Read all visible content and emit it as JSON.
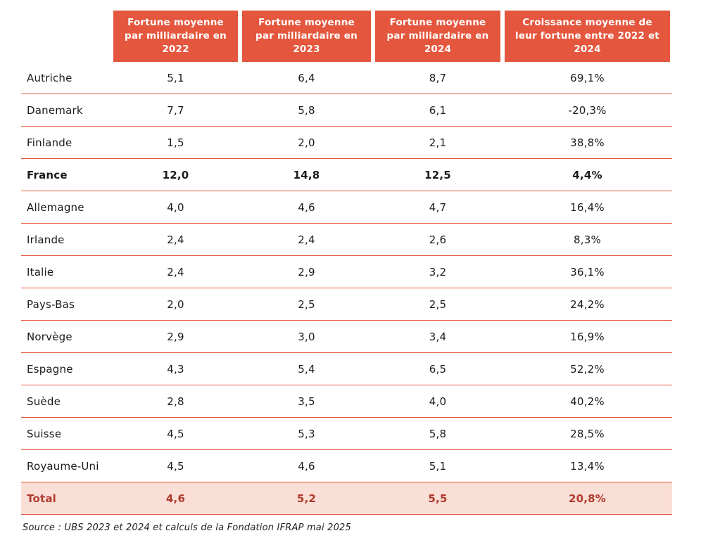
{
  "table": {
    "columns": [
      "Fortune moyenne par milliardaire en 2022",
      "Fortune moyenne par milliardaire en 2023",
      "Fortune moyenne par milliardaire en 2024",
      "Croissance moyenne de leur fortune entre 2022 et 2024"
    ],
    "rows": [
      {
        "country": "Autriche",
        "v2022": "5,1",
        "v2023": "6,4",
        "v2024": "8,7",
        "growth": "69,1%"
      },
      {
        "country": "Danemark",
        "v2022": "7,7",
        "v2023": "5,8",
        "v2024": "6,1",
        "growth": "-20,3%"
      },
      {
        "country": "Finlande",
        "v2022": "1,5",
        "v2023": "2,0",
        "v2024": "2,1",
        "growth": "38,8%"
      },
      {
        "country": "France",
        "v2022": "12,0",
        "v2023": "14,8",
        "v2024": "12,5",
        "growth": "4,4%"
      },
      {
        "country": "Allemagne",
        "v2022": "4,0",
        "v2023": "4,6",
        "v2024": "4,7",
        "growth": "16,4%"
      },
      {
        "country": "Irlande",
        "v2022": "2,4",
        "v2023": "2,4",
        "v2024": "2,6",
        "growth": "8,3%"
      },
      {
        "country": "Italie",
        "v2022": "2,4",
        "v2023": "2,9",
        "v2024": "3,2",
        "growth": "36,1%"
      },
      {
        "country": "Pays-Bas",
        "v2022": "2,0",
        "v2023": "2,5",
        "v2024": "2,5",
        "growth": "24,2%"
      },
      {
        "country": "Norvège",
        "v2022": "2,9",
        "v2023": "3,0",
        "v2024": "3,4",
        "growth": "16,9%"
      },
      {
        "country": "Espagne",
        "v2022": "4,3",
        "v2023": "5,4",
        "v2024": "6,5",
        "growth": "52,2%"
      },
      {
        "country": "Suède",
        "v2022": "2,8",
        "v2023": "3,5",
        "v2024": "4,0",
        "growth": "40,2%"
      },
      {
        "country": "Suisse",
        "v2022": "4,5",
        "v2023": "5,3",
        "v2024": "5,8",
        "growth": "28,5%"
      },
      {
        "country": "Royaume-Uni",
        "v2022": "4,5",
        "v2023": "4,6",
        "v2024": "5,1",
        "growth": "13,4%"
      }
    ],
    "total": {
      "label": "Total",
      "v2022": "4,6",
      "v2023": "5,2",
      "v2024": "5,5",
      "growth": "20,8%"
    }
  },
  "source": "Source : UBS 2023 et 2024 et calculs de la Fondation IFRAP mai 2025",
  "colors": {
    "header_bg": "#E4573E",
    "separator": "#E4573E",
    "total_bg": "#F9DFD6",
    "total_text": "#B03A2E",
    "body_text": "#1b1b1b"
  },
  "chart_data": {
    "type": "table",
    "title": "Fortune moyenne par milliardaire 2022-2024 et croissance",
    "categories": [
      "Autriche",
      "Danemark",
      "Finlande",
      "France",
      "Allemagne",
      "Irlande",
      "Italie",
      "Pays-Bas",
      "Norvège",
      "Espagne",
      "Suède",
      "Suisse",
      "Royaume-Uni",
      "Total"
    ],
    "series": [
      {
        "name": "Fortune moyenne par milliardaire en 2022",
        "values": [
          5.1,
          7.7,
          1.5,
          12.0,
          4.0,
          2.4,
          2.4,
          2.0,
          2.9,
          4.3,
          2.8,
          4.5,
          4.5,
          4.6
        ]
      },
      {
        "name": "Fortune moyenne par milliardaire en 2023",
        "values": [
          6.4,
          5.8,
          2.0,
          14.8,
          4.6,
          2.4,
          2.9,
          2.5,
          3.0,
          5.4,
          3.5,
          5.3,
          4.6,
          5.2
        ]
      },
      {
        "name": "Fortune moyenne par milliardaire en 2024",
        "values": [
          8.7,
          6.1,
          2.1,
          12.5,
          4.7,
          2.6,
          3.2,
          2.5,
          3.4,
          6.5,
          4.0,
          5.8,
          5.1,
          5.5
        ]
      },
      {
        "name": "Croissance moyenne de leur fortune entre 2022 et 2024 (%)",
        "values": [
          69.1,
          -20.3,
          38.8,
          4.4,
          16.4,
          8.3,
          36.1,
          24.2,
          16.9,
          52.2,
          40.2,
          28.5,
          13.4,
          20.8
        ]
      }
    ]
  }
}
